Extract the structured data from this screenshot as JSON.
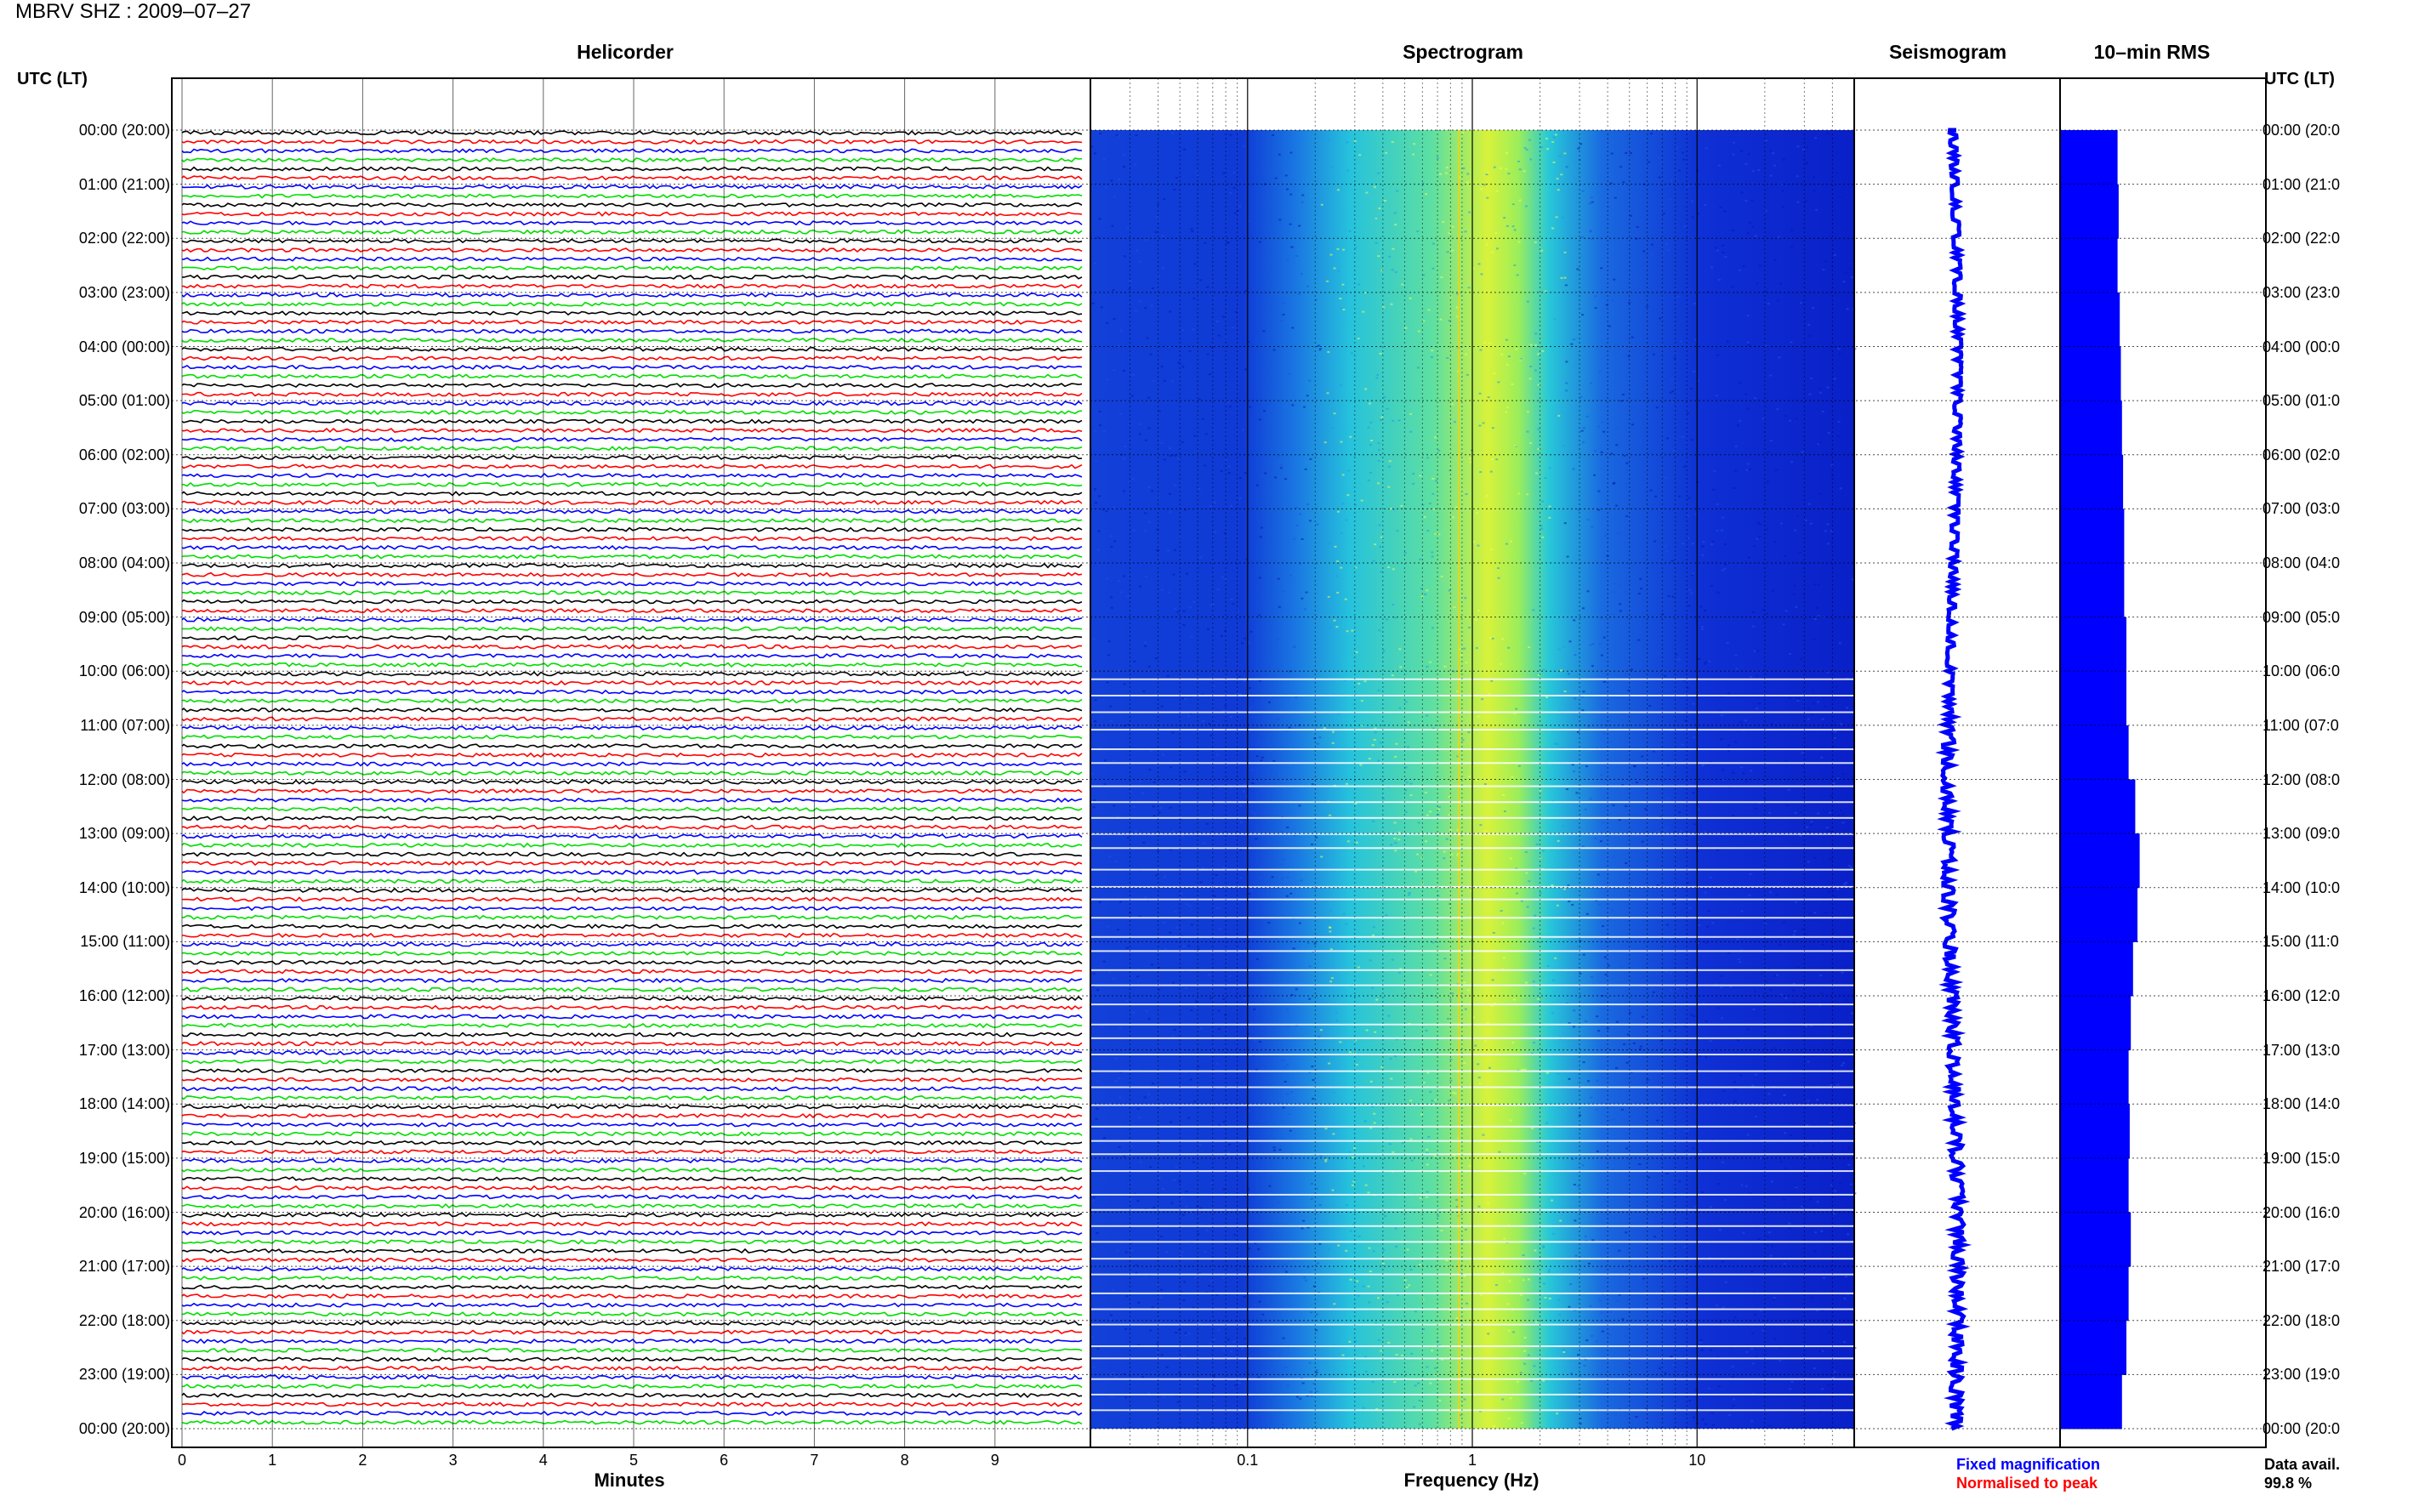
{
  "header": {
    "title": "MBRV SHZ : 2009–07–27"
  },
  "panels": {
    "helicorder": "Helicorder",
    "spectrogram": "Spectrogram",
    "seismogram": "Seismogram",
    "rms": "10–min RMS"
  },
  "axis": {
    "utc_label": "UTC (LT)",
    "minutes_label": "Minutes",
    "frequency_label": "Frequency (Hz)",
    "minutes_ticks": [
      "0",
      "1",
      "2",
      "3",
      "4",
      "5",
      "6",
      "7",
      "8",
      "9"
    ],
    "frequency_ticks": [
      "0.1",
      "1",
      "10"
    ]
  },
  "time_labels_left": [
    "00:00 (20:00)",
    "01:00 (21:00)",
    "02:00 (22:00)",
    "03:00 (23:00)",
    "04:00 (00:00)",
    "05:00 (01:00)",
    "06:00 (02:00)",
    "07:00 (03:00)",
    "08:00 (04:00)",
    "09:00 (05:00)",
    "10:00 (06:00)",
    "11:00 (07:00)",
    "12:00 (08:00)",
    "13:00 (09:00)",
    "14:00 (10:00)",
    "15:00 (11:00)",
    "16:00 (12:00)",
    "17:00 (13:00)",
    "18:00 (14:00)",
    "19:00 (15:00)",
    "20:00 (16:00)",
    "21:00 (17:00)",
    "22:00 (18:00)",
    "23:00 (19:00)",
    "00:00 (20:00)"
  ],
  "time_labels_right": [
    "00:00 (20:0",
    "01:00 (21:0",
    "02:00 (22:0",
    "03:00 (23:0",
    "04:00 (00:0",
    "05:00 (01:0",
    "06:00 (02:0",
    "07:00 (03:0",
    "08:00 (04:0",
    "09:00 (05:0",
    "10:00 (06:0",
    "11:00 (07:0",
    "12:00 (08:0",
    "13:00 (09:0",
    "14:00 (10:0",
    "15:00 (11:0",
    "16:00 (12:0",
    "17:00 (13:0",
    "18:00 (14:0",
    "19:00 (15:0",
    "20:00 (16:0",
    "21:00 (17:0",
    "22:00 (18:0",
    "23:00 (19:0",
    "00:00 (20:0"
  ],
  "legend": {
    "fixed": "Fixed magnification",
    "normalised": "Normalised to peak",
    "data_avail_label": "Data avail.",
    "data_avail_value": "99.8 %"
  },
  "colors": {
    "trace_cycle": [
      "#000000",
      "#ff0000",
      "#0000ff",
      "#00dd00"
    ],
    "seismogram": "#0000ff",
    "rms_bar": "#0000ff",
    "fixed_legend": "#0000ff",
    "normalised_legend": "#ff0000",
    "spectrogram_low": "#0a1fd6",
    "spectrogram_mid": "#1fc7e0",
    "spectrogram_high": "#f0ff30"
  },
  "chart_data": {
    "type": "heatmap",
    "title": "MBRV SHZ : 2009–07–27",
    "panels": [
      "Helicorder",
      "Spectrogram",
      "Seismogram",
      "10–min RMS"
    ],
    "helicorder": {
      "xlabel": "Minutes",
      "xlim": [
        0,
        10
      ],
      "row_minutes": 10,
      "hours": 24,
      "row_colors": [
        "black",
        "red",
        "blue",
        "green"
      ]
    },
    "spectrogram": {
      "xlabel": "Frequency (Hz)",
      "x_scale": "log",
      "xlim": [
        0.02,
        50
      ],
      "peak_frequency_band_hz": [
        0.3,
        3
      ]
    },
    "y_axis": {
      "label": "UTC (LT)",
      "ticks": [
        "00:00",
        "01:00",
        "02:00",
        "03:00",
        "04:00",
        "05:00",
        "06:00",
        "07:00",
        "08:00",
        "09:00",
        "10:00",
        "11:00",
        "12:00",
        "13:00",
        "14:00",
        "15:00",
        "16:00",
        "17:00",
        "18:00",
        "19:00",
        "20:00",
        "21:00",
        "22:00",
        "23:00",
        "00:00"
      ]
    },
    "rms_relative": [
      0.52,
      0.53,
      0.52,
      0.54,
      0.55,
      0.56,
      0.57,
      0.58,
      0.58,
      0.6,
      0.6,
      0.62,
      0.68,
      0.72,
      0.7,
      0.66,
      0.64,
      0.62,
      0.63,
      0.62,
      0.64,
      0.62,
      0.6,
      0.56
    ],
    "data_availability_percent": 99.8
  }
}
